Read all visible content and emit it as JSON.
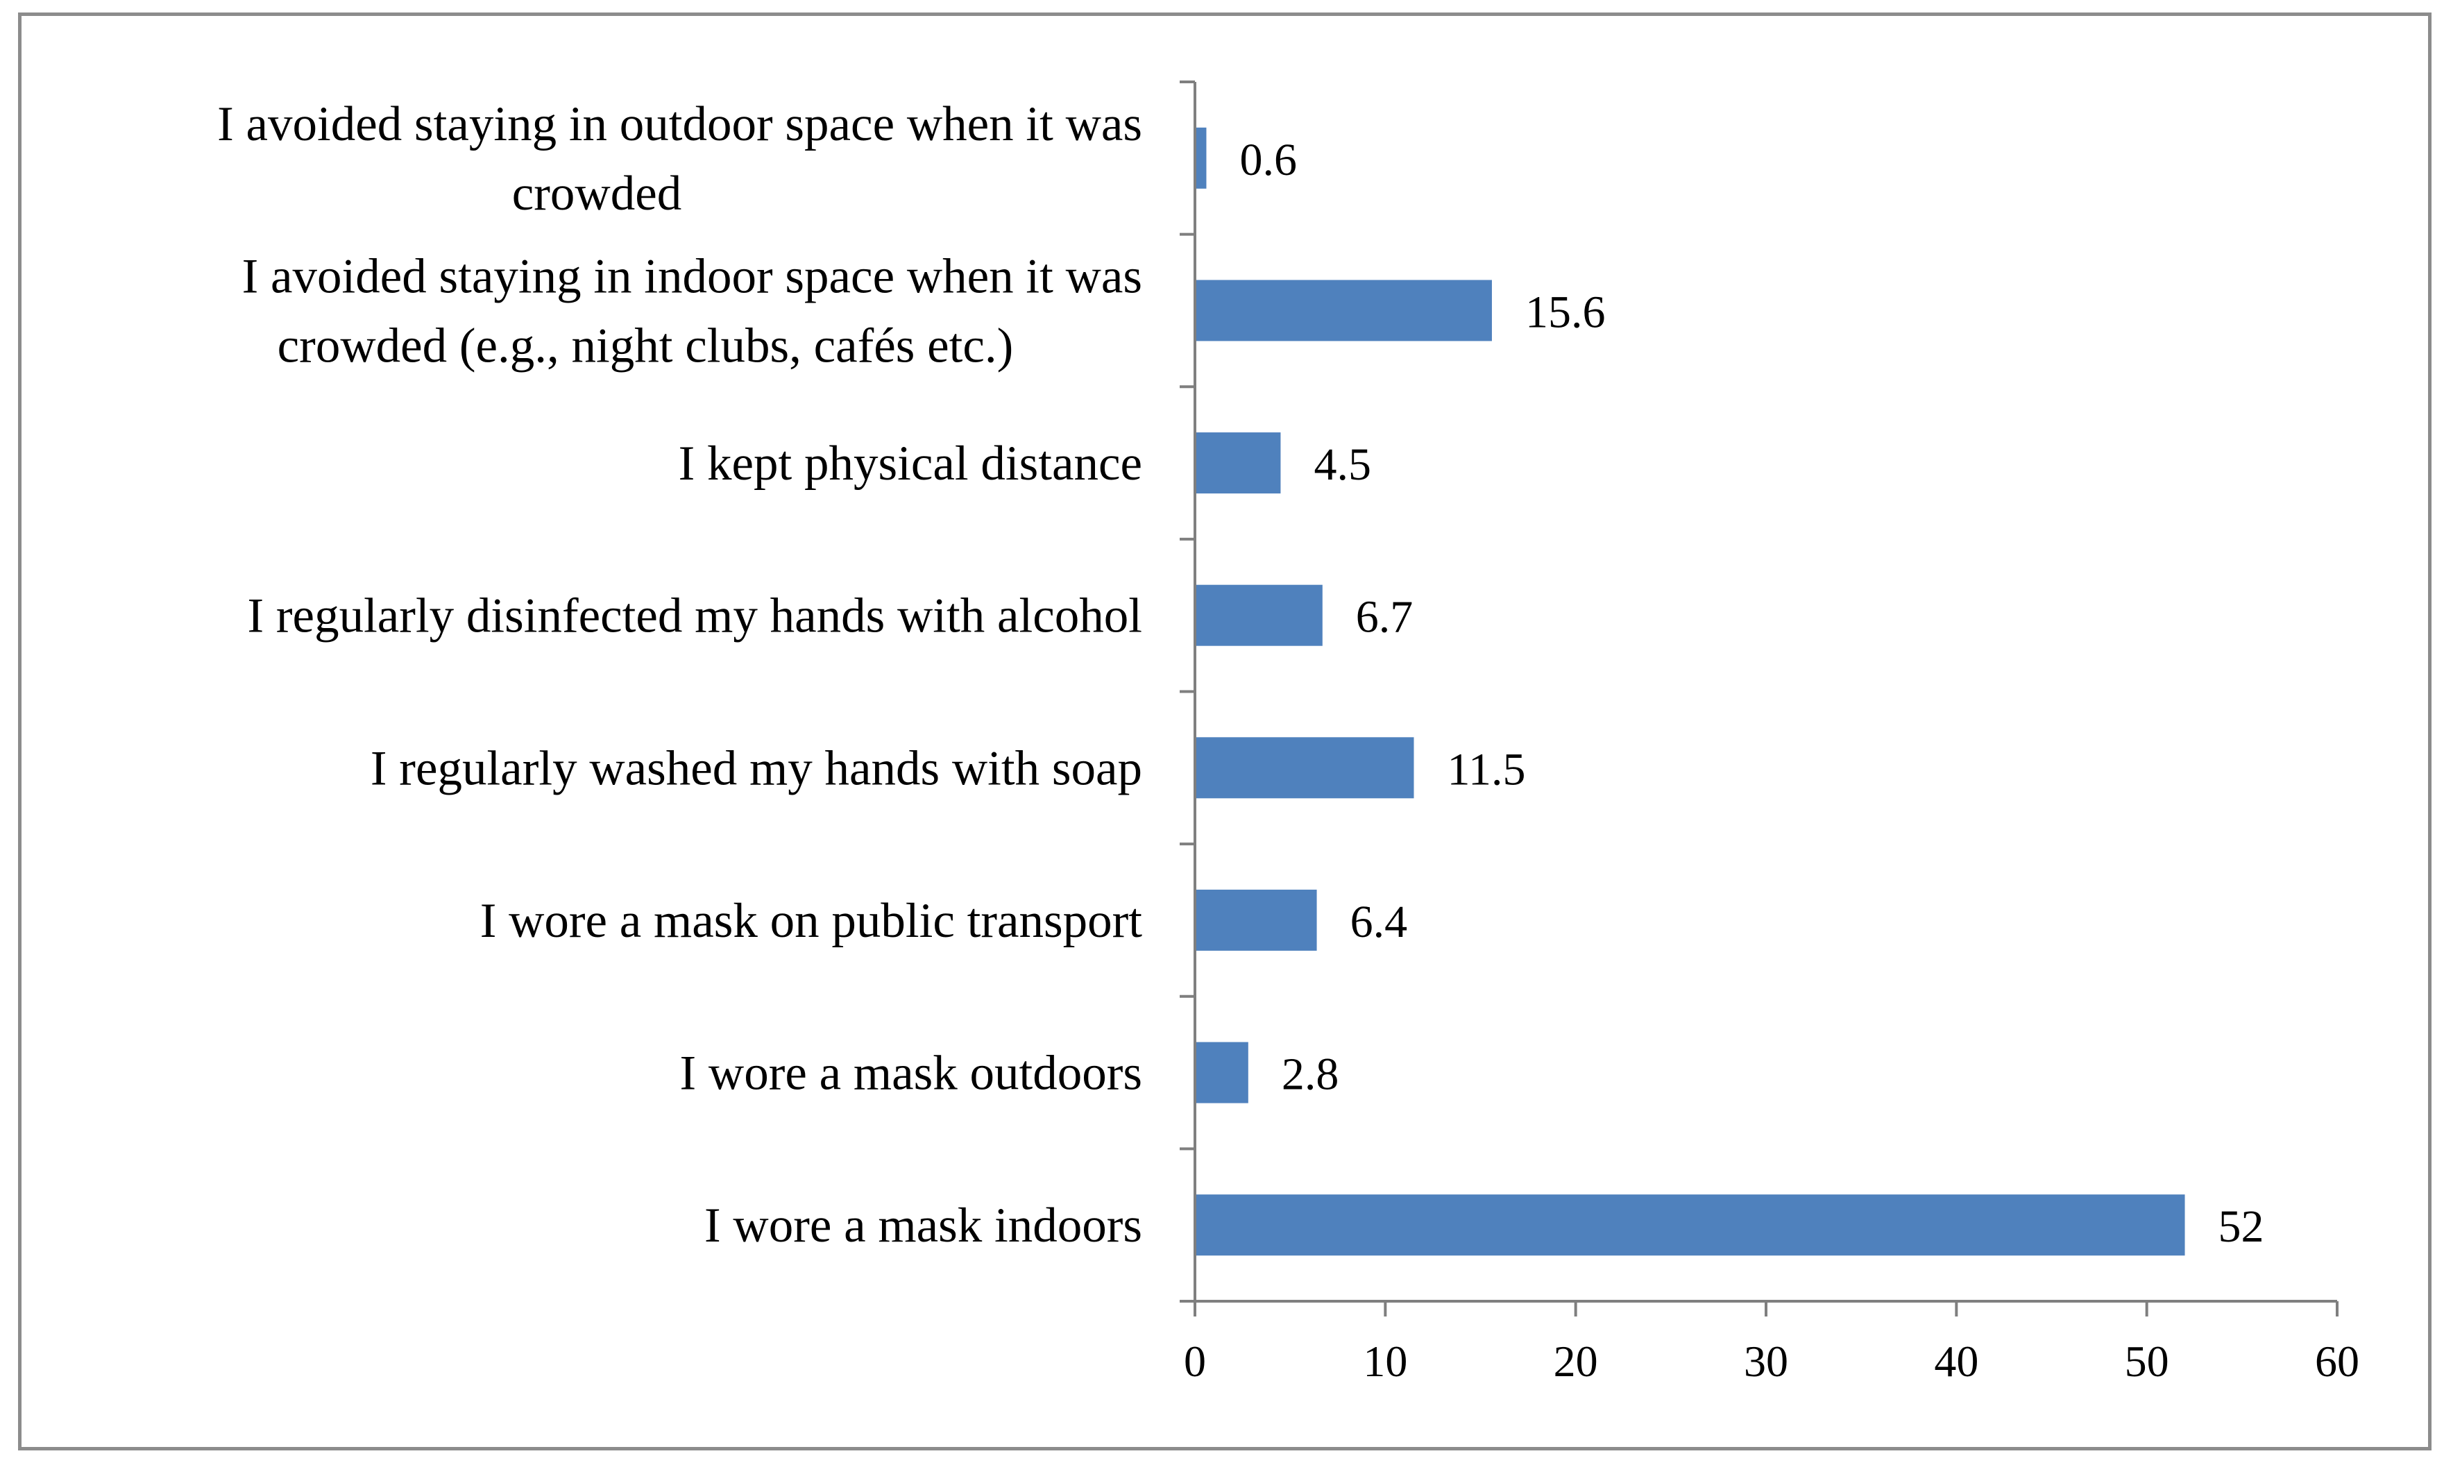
{
  "chart_data": {
    "type": "bar",
    "orientation": "horizontal",
    "categories": [
      [
        "I avoided staying in outdoor space when it was",
        "crowded"
      ],
      [
        "I avoided staying in indoor space when it was",
        "crowded (e.g., night clubs, cafés etc.)"
      ],
      [
        "I kept physical distance"
      ],
      [
        "I regularly disinfected my hands with alcohol"
      ],
      [
        "I regularly washed my hands with soap"
      ],
      [
        "I wore a mask on public transport"
      ],
      [
        "I wore a mask outdoors"
      ],
      [
        "I wore a mask indoors"
      ]
    ],
    "values": [
      0.6,
      15.6,
      4.5,
      6.7,
      11.5,
      6.4,
      2.8,
      52
    ],
    "data_labels": [
      "0.6",
      "15.6",
      "4.5",
      "6.7",
      "11.5",
      "6.4",
      "2.8",
      "52"
    ],
    "xlim": [
      0,
      60
    ],
    "xticks": [
      0,
      10,
      20,
      30,
      40,
      50,
      60
    ],
    "xtick_labels": [
      "0",
      "10",
      "20",
      "30",
      "40",
      "50",
      "60"
    ],
    "title": "",
    "xlabel": "",
    "ylabel": "",
    "grid": false,
    "legend": "none",
    "colors": {
      "bar": "#4f81bd",
      "axis": "#7f7f7f",
      "frame": "#8c8c8c",
      "text": "#000000"
    }
  }
}
